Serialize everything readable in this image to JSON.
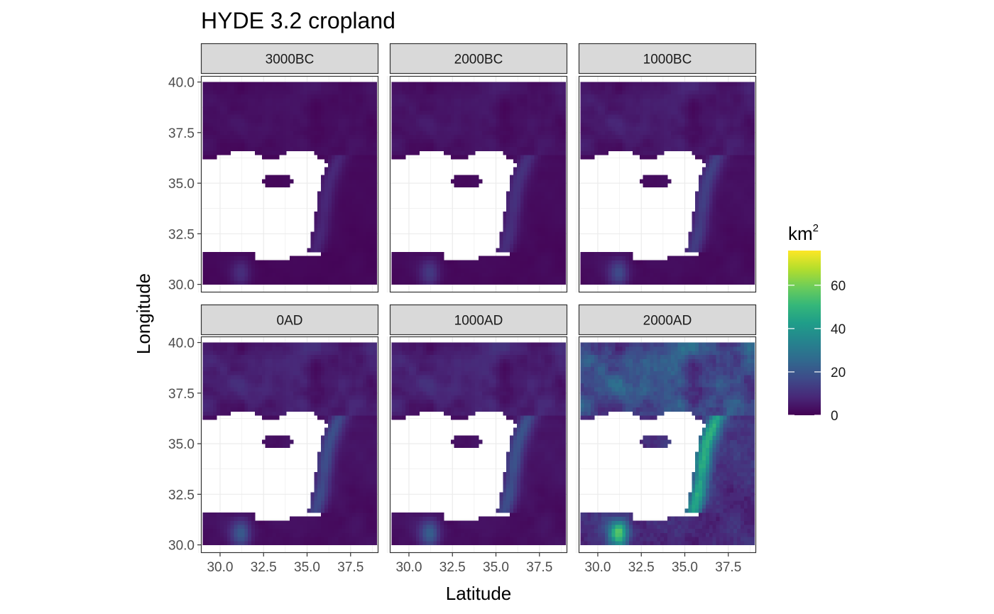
{
  "chart_data": {
    "type": "heatmap",
    "title": "HYDE 3.2 cropland",
    "xlabel": "Latitude",
    "ylabel": "Longitude",
    "facets": [
      "3000BC",
      "2000BC",
      "1000BC",
      "0AD",
      "1000AD",
      "2000AD"
    ],
    "x_ticks": [
      30.0,
      32.5,
      35.0,
      37.5
    ],
    "x_tick_labels": [
      "30.0",
      "32.5",
      "35.0",
      "37.5"
    ],
    "y_ticks": [
      30.0,
      32.5,
      35.0,
      37.5,
      40.0
    ],
    "y_tick_labels": [
      "30.0",
      "32.5",
      "35.0",
      "37.5",
      "40.0"
    ],
    "xlim": [
      28.9,
      39.1
    ],
    "ylim": [
      29.6,
      40.3
    ],
    "data_extent": {
      "x": [
        29.0,
        39.0
      ],
      "y": [
        30.0,
        40.0
      ]
    },
    "grid": true,
    "legend": {
      "title": "km",
      "title_superscript": "2",
      "position": "right",
      "colormap": "viridis",
      "range": [
        0,
        76
      ],
      "breaks": [
        0,
        20,
        40,
        60
      ],
      "break_labels": [
        "0",
        "20",
        "40",
        "60"
      ]
    },
    "colors": [
      "#440154",
      "#482878",
      "#3e4a89",
      "#31688e",
      "#26828e",
      "#1f9e89",
      "#35b779",
      "#6dcd59",
      "#b4de2c",
      "#fde725"
    ],
    "facet_intensity": [
      0.07,
      0.09,
      0.12,
      0.15,
      0.16,
      0.42
    ]
  }
}
